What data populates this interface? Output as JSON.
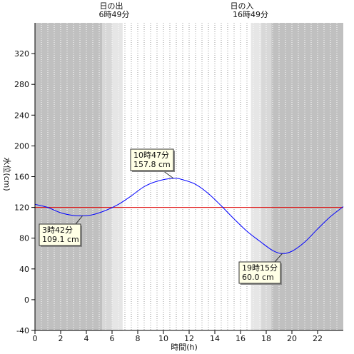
{
  "sun": {
    "sunrise_title": "日の出",
    "sunrise_time": "6時49分",
    "sunset_title": "日の入",
    "sunset_time": "16時49分"
  },
  "chart_data": {
    "type": "line",
    "xlabel": "時間(h)",
    "ylabel": "水位(cm)",
    "xlim": [
      0,
      24
    ],
    "ylim": [
      -40,
      360
    ],
    "xticks": [
      0,
      2,
      4,
      6,
      8,
      10,
      12,
      14,
      16,
      18,
      20,
      22
    ],
    "yticks": [
      -40,
      0,
      40,
      80,
      120,
      160,
      200,
      240,
      280,
      320
    ],
    "grid": "dotted vertical every 0.5 h",
    "reference_line": {
      "value": 120,
      "color": "#dd0000"
    },
    "daylight": {
      "sunrise": 6.817,
      "sunset": 16.817
    },
    "series": [
      {
        "color": "#0000ff",
        "x": [
          0,
          1,
          2,
          3,
          3.7,
          4.5,
          5.5,
          6.5,
          7.5,
          8.5,
          9.5,
          10.78,
          11.5,
          12.5,
          13.5,
          14.5,
          15.5,
          16.5,
          17.5,
          18.5,
          19.25,
          20,
          21,
          22,
          23,
          24
        ],
        "values": [
          124,
          120,
          113,
          109.5,
          109.1,
          110.5,
          116,
          124,
          135,
          147,
          154,
          157.8,
          156,
          150,
          138,
          122,
          105,
          89,
          76,
          64,
          60,
          63,
          75,
          92,
          108,
          121
        ]
      }
    ],
    "annotations": [
      {
        "time": "10時47分",
        "value": "157.8 cm",
        "x": 10.78,
        "y": 157.8
      },
      {
        "time": "3時42分",
        "value": "109.1 cm",
        "x": 3.7,
        "y": 109.1
      },
      {
        "time": "19時15分",
        "value": "60.0 cm",
        "x": 19.25,
        "y": 60.0
      }
    ]
  }
}
